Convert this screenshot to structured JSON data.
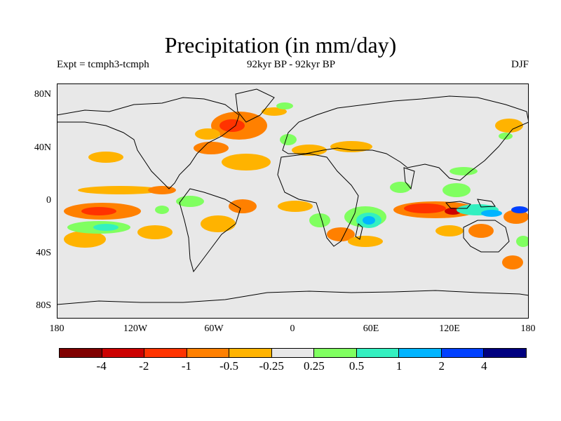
{
  "title": "Precipitation (in mm/day)",
  "experiment": "Expt = tcmph3-tcmph",
  "period": "92kyr BP - 92kyr BP",
  "season": "DJF",
  "lat_ticks": [
    "80N",
    "40N",
    "0",
    "40S",
    "80S"
  ],
  "lon_ticks": [
    "180",
    "120W",
    "60W",
    "0",
    "60E",
    "120E",
    "180"
  ],
  "colorbar": {
    "colors": [
      "#800000",
      "#cc0000",
      "#ff3300",
      "#ff8000",
      "#ffb300",
      "#e8e8e8",
      "#80ff60",
      "#33f0c0",
      "#00b4ff",
      "#0040ff",
      "#000080"
    ],
    "labels": [
      "-4",
      "-2",
      "-1",
      "-0.5",
      "-0.25",
      "0.25",
      "0.5",
      "1",
      "2",
      "4"
    ]
  },
  "colors": {
    "background": "#e8e8e8",
    "coast": "#000000"
  }
}
